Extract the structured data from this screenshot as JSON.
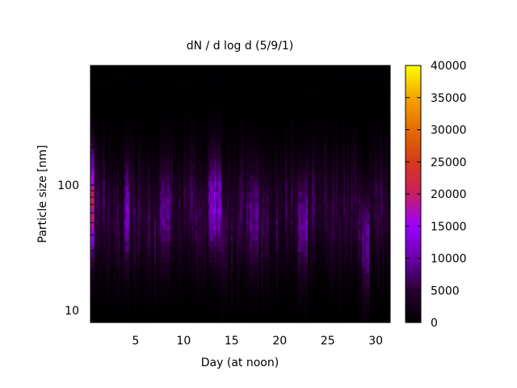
{
  "chart_data": {
    "type": "heatmap",
    "title": "dN / d log d (5/9/1)",
    "xlabel": "Day (at noon)",
    "ylabel": "Particle size [nm]",
    "x_range": [
      0.3,
      31.5
    ],
    "y_range": [
      8,
      900
    ],
    "y_scale": "log",
    "x_ticks": [
      5,
      10,
      15,
      20,
      25,
      30
    ],
    "y_ticks": [
      10,
      100
    ],
    "grid": false,
    "colorbar": {
      "position": "right",
      "range": [
        0,
        40000
      ],
      "ticks": [
        0,
        5000,
        10000,
        15000,
        20000,
        25000,
        30000,
        35000,
        40000
      ],
      "palette": [
        "#000000",
        "#2a0033",
        "#6a00a8",
        "#9b00ff",
        "#c81f63",
        "#d43b1a",
        "#e46b00",
        "#f5a400",
        "#ffff00"
      ]
    },
    "data": {
      "data_top_nm": 800,
      "upper_band_nm": [
        500,
        800
      ],
      "upper_band_value": 500,
      "bright_intervals": [
        {
          "start_day": 0.3,
          "end_day": 0.6,
          "peak_nm": 70,
          "value": 20000
        },
        {
          "start_day": 3.8,
          "end_day": 4.3,
          "peak_nm": 60,
          "value": 11000
        },
        {
          "start_day": 7.5,
          "end_day": 8.6,
          "peak_nm": 60,
          "value": 9000
        },
        {
          "start_day": 12.6,
          "end_day": 14.0,
          "peak_nm": 70,
          "value": 12000
        },
        {
          "start_day": 16.8,
          "end_day": 17.8,
          "peak_nm": 55,
          "value": 9000
        },
        {
          "start_day": 22.0,
          "end_day": 23.0,
          "peak_nm": 50,
          "value": 11000
        },
        {
          "start_day": 28.6,
          "end_day": 29.4,
          "peak_nm": 35,
          "value": 10000
        }
      ]
    }
  }
}
